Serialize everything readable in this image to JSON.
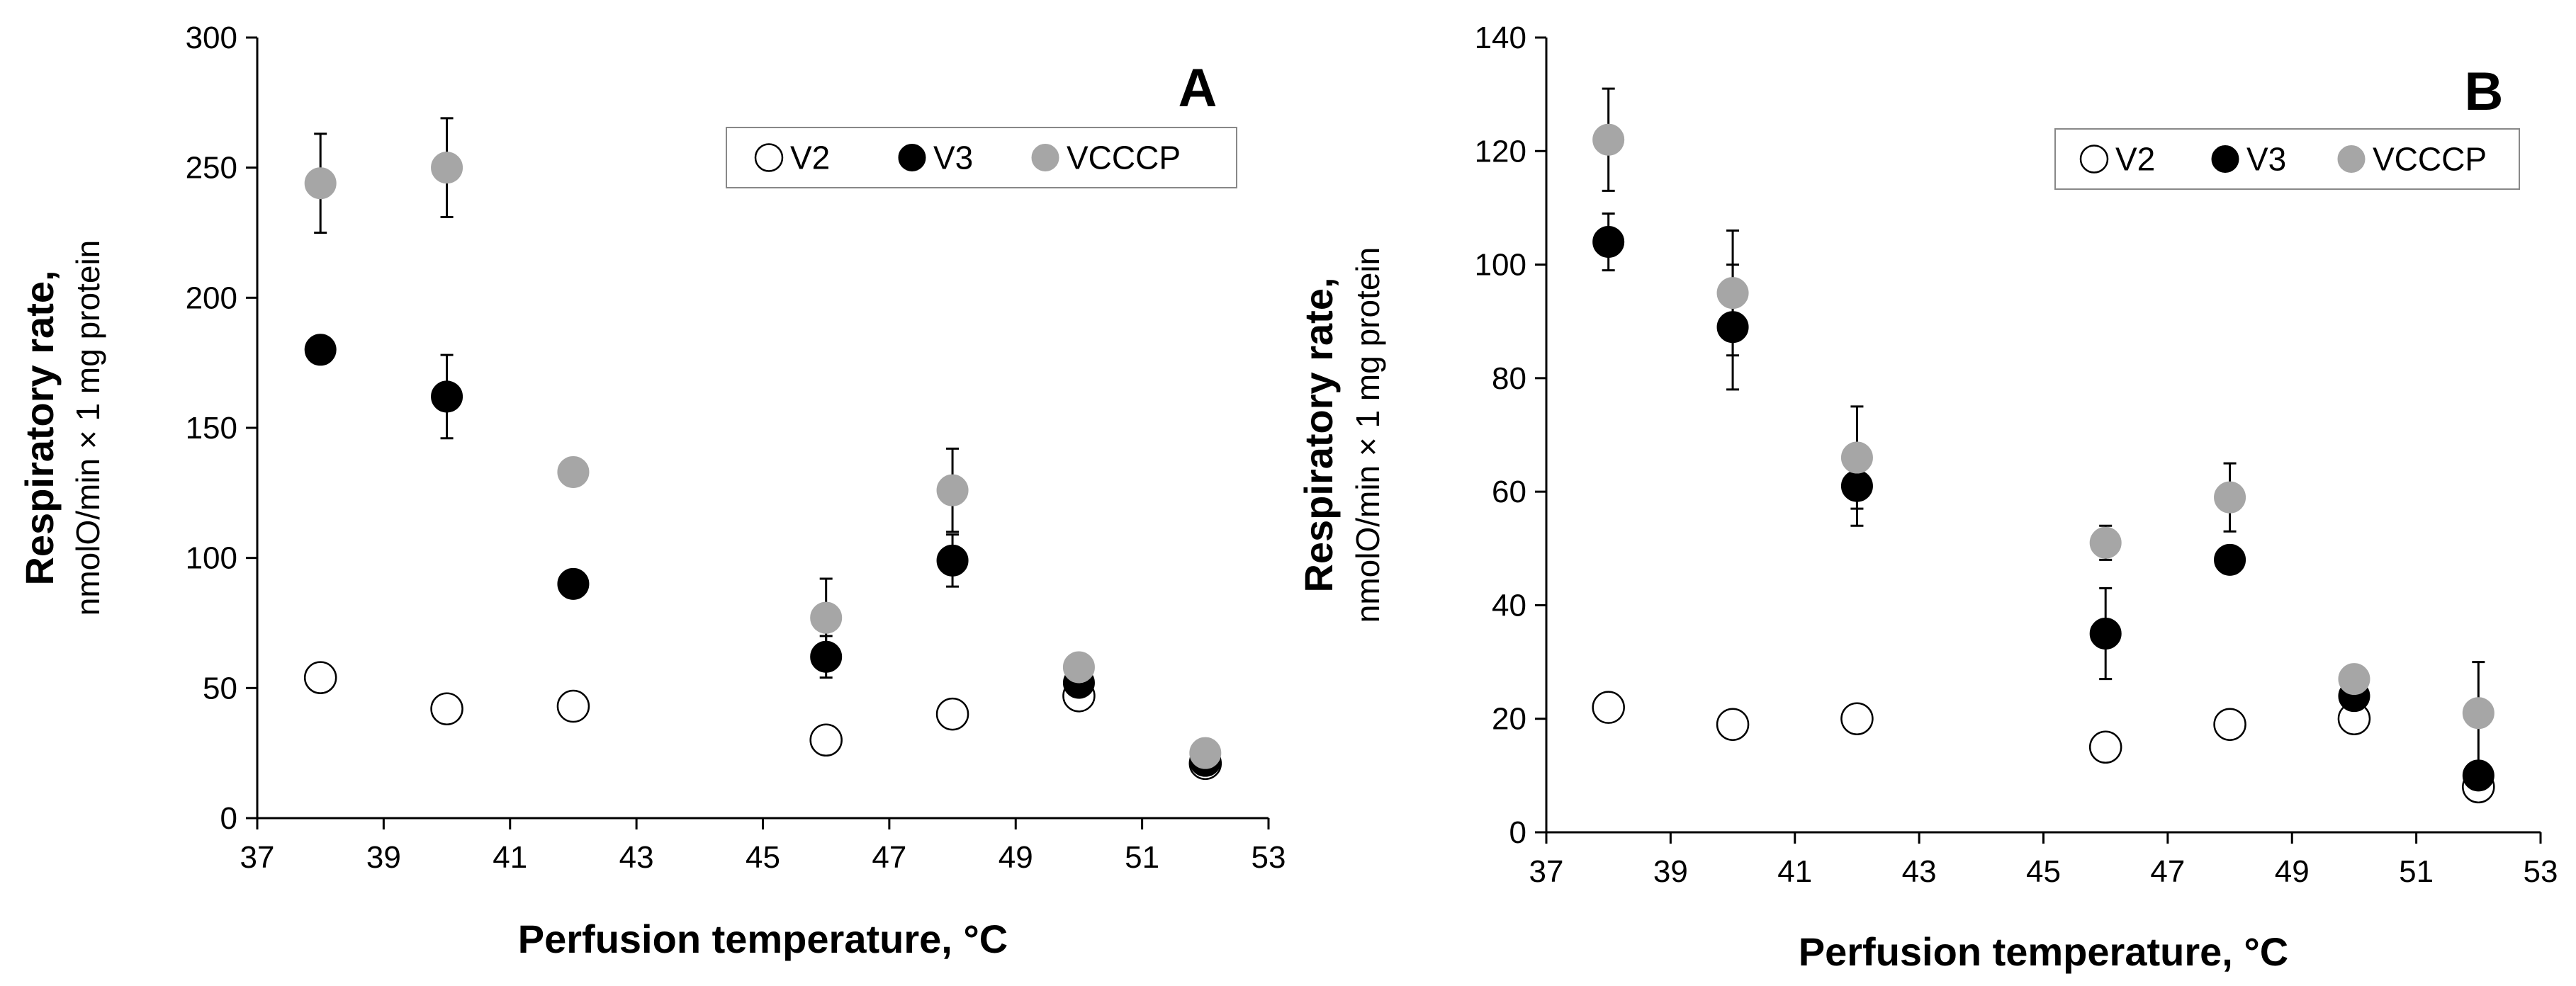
{
  "chart_data": [
    {
      "type": "scatter",
      "panel_label": "A",
      "xlabel": "Perfusion temperature, °C",
      "ylabel_main": "Respiratory rate,",
      "ylabel_sub": "nmolO/min × 1 mg protein",
      "xlim": [
        37,
        53
      ],
      "ylim": [
        0,
        300
      ],
      "xticks": [
        "37",
        "39",
        "41",
        "43",
        "45",
        "47",
        "49",
        "51",
        "53"
      ],
      "yticks": [
        "0",
        "50",
        "100",
        "150",
        "200",
        "250",
        "300"
      ],
      "legend_position": "top-right",
      "series": [
        {
          "name": "V2",
          "marker": "open-circle",
          "color": "#000000",
          "x": [
            38,
            40,
            42,
            46,
            48,
            50,
            52
          ],
          "y": [
            54,
            42,
            43,
            30,
            40,
            47,
            21
          ],
          "err": [
            0,
            0,
            0,
            0,
            0,
            0,
            0
          ]
        },
        {
          "name": "V3",
          "marker": "filled-circle",
          "color": "#000000",
          "x": [
            38,
            40,
            42,
            46,
            48,
            50,
            52
          ],
          "y": [
            180,
            162,
            90,
            62,
            99,
            52,
            22
          ],
          "err": [
            0,
            16,
            0,
            8,
            10,
            0,
            0
          ]
        },
        {
          "name": "VCCCP",
          "marker": "filled-circle",
          "color": "#a6a6a6",
          "x": [
            38,
            40,
            42,
            46,
            48,
            50,
            52
          ],
          "y": [
            244,
            250,
            133,
            77,
            126,
            58,
            25
          ],
          "err": [
            19,
            19,
            0,
            15,
            16,
            0,
            0
          ]
        }
      ]
    },
    {
      "type": "scatter",
      "panel_label": "B",
      "xlabel": "Perfusion temperature, °C",
      "ylabel_main": "Respiratory rate,",
      "ylabel_sub": "nmolO/min × 1 mg protein",
      "xlim": [
        37,
        53
      ],
      "ylim": [
        0,
        140
      ],
      "xticks": [
        "37",
        "39",
        "41",
        "43",
        "45",
        "47",
        "49",
        "51",
        "53"
      ],
      "yticks": [
        "0",
        "20",
        "40",
        "60",
        "80",
        "100",
        "120",
        "140"
      ],
      "legend_position": "top-right",
      "series": [
        {
          "name": "V2",
          "marker": "open-circle",
          "color": "#000000",
          "x": [
            38,
            40,
            42,
            46,
            48,
            50,
            52
          ],
          "y": [
            22,
            19,
            20,
            15,
            19,
            20,
            8
          ],
          "err": [
            0,
            0,
            0,
            0,
            0,
            0,
            0
          ]
        },
        {
          "name": "V3",
          "marker": "filled-circle",
          "color": "#000000",
          "x": [
            38,
            40,
            42,
            46,
            48,
            50,
            52
          ],
          "y": [
            104,
            89,
            61,
            35,
            48,
            24,
            10
          ],
          "err": [
            5,
            11,
            7,
            8,
            0,
            0,
            0
          ]
        },
        {
          "name": "VCCCP",
          "marker": "filled-circle",
          "color": "#a6a6a6",
          "x": [
            38,
            40,
            42,
            46,
            48,
            50,
            52
          ],
          "y": [
            122,
            95,
            66,
            51,
            59,
            27,
            21
          ],
          "err": [
            9,
            11,
            9,
            3,
            6,
            0,
            9
          ]
        }
      ]
    }
  ]
}
